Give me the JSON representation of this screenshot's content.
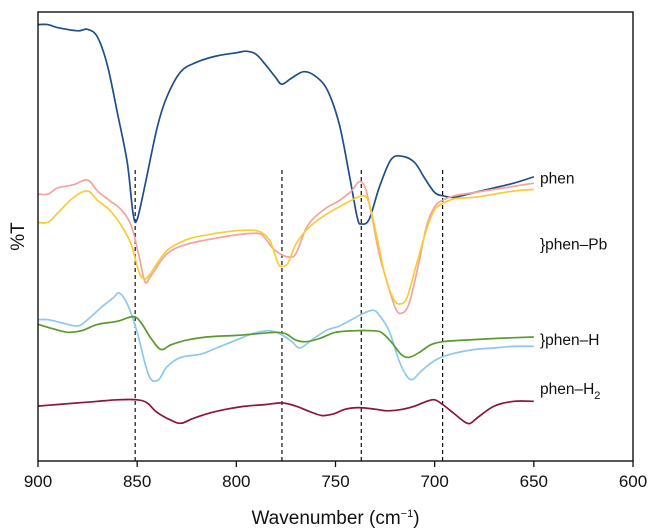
{
  "chart_data": {
    "type": "line",
    "title": "",
    "xlabel": {
      "prefix": "Wavenumber (cm",
      "sup": "−1",
      "suffix": ")"
    },
    "ylabel": "%T",
    "xlim": [
      900,
      600
    ],
    "x_reversed": true,
    "x_ticks": [
      900,
      850,
      800,
      750,
      700,
      650,
      600
    ],
    "y_ticks": [],
    "y_unit": "arbitrary offset transmittance",
    "grid": false,
    "legend": "none (labels at right end of curves)",
    "reference_lines": [
      851,
      777,
      737,
      696
    ],
    "labels": [
      {
        "id": "phen",
        "text": "phen",
        "y": 0.27
      },
      {
        "id": "phen-pb",
        "text": "}phen–Pb",
        "y": 0.06
      },
      {
        "id": "phen-h",
        "text": "}phen–H",
        "y": -0.245
      },
      {
        "id": "phen-h2",
        "text": "phen–H",
        "sub": "2",
        "y": -0.4
      }
    ],
    "series": [
      {
        "color": "#1f4e8c",
        "points": [
          [
            900,
            0.76
          ],
          [
            895,
            0.76
          ],
          [
            890,
            0.75
          ],
          [
            880,
            0.74
          ],
          [
            875,
            0.745
          ],
          [
            870,
            0.72
          ],
          [
            865,
            0.63
          ],
          [
            860,
            0.48
          ],
          [
            855,
            0.32
          ],
          [
            852,
            0.155
          ],
          [
            850,
            0.14
          ],
          [
            846,
            0.25
          ],
          [
            840,
            0.43
          ],
          [
            835,
            0.53
          ],
          [
            828,
            0.61
          ],
          [
            820,
            0.64
          ],
          [
            810,
            0.66
          ],
          [
            800,
            0.67
          ],
          [
            795,
            0.675
          ],
          [
            790,
            0.665
          ],
          [
            785,
            0.63
          ],
          [
            780,
            0.59
          ],
          [
            777,
            0.57
          ],
          [
            772,
            0.59
          ],
          [
            766,
            0.61
          ],
          [
            760,
            0.595
          ],
          [
            754,
            0.55
          ],
          [
            748,
            0.44
          ],
          [
            743,
            0.28
          ],
          [
            739,
            0.145
          ],
          [
            737,
            0.125
          ],
          [
            733,
            0.14
          ],
          [
            728,
            0.24
          ],
          [
            722,
            0.33
          ],
          [
            716,
            0.34
          ],
          [
            710,
            0.32
          ],
          [
            705,
            0.27
          ],
          [
            700,
            0.225
          ],
          [
            696,
            0.215
          ],
          [
            690,
            0.21
          ],
          [
            680,
            0.225
          ],
          [
            670,
            0.24
          ],
          [
            660,
            0.255
          ],
          [
            650,
            0.275
          ]
        ]
      },
      {
        "color": "#f4a3a0",
        "points": [
          [
            900,
            0.22
          ],
          [
            895,
            0.22
          ],
          [
            890,
            0.24
          ],
          [
            882,
            0.25
          ],
          [
            875,
            0.265
          ],
          [
            870,
            0.23
          ],
          [
            864,
            0.2
          ],
          [
            858,
            0.17
          ],
          [
            853,
            0.12
          ],
          [
            849,
            0.02
          ],
          [
            846,
            -0.06
          ],
          [
            843,
            -0.04
          ],
          [
            835,
            0.03
          ],
          [
            825,
            0.06
          ],
          [
            810,
            0.08
          ],
          [
            800,
            0.09
          ],
          [
            792,
            0.095
          ],
          [
            787,
            0.09
          ],
          [
            782,
            0.05
          ],
          [
            778,
            0.03
          ],
          [
            774,
            0.02
          ],
          [
            770,
            0.03
          ],
          [
            764,
            0.12
          ],
          [
            756,
            0.17
          ],
          [
            748,
            0.2
          ],
          [
            742,
            0.23
          ],
          [
            738,
            0.26
          ],
          [
            735,
            0.24
          ],
          [
            732,
            0.16
          ],
          [
            728,
            0.03
          ],
          [
            724,
            -0.06
          ],
          [
            720,
            -0.14
          ],
          [
            717,
            -0.16
          ],
          [
            713,
            -0.13
          ],
          [
            708,
            0.0
          ],
          [
            704,
            0.12
          ],
          [
            700,
            0.18
          ],
          [
            696,
            0.2
          ],
          [
            690,
            0.215
          ],
          [
            680,
            0.225
          ],
          [
            670,
            0.235
          ],
          [
            660,
            0.245
          ],
          [
            650,
            0.255
          ]
        ]
      },
      {
        "color": "#f7cd33",
        "points": [
          [
            900,
            0.13
          ],
          [
            895,
            0.13
          ],
          [
            890,
            0.16
          ],
          [
            882,
            0.21
          ],
          [
            875,
            0.23
          ],
          [
            870,
            0.2
          ],
          [
            864,
            0.17
          ],
          [
            858,
            0.12
          ],
          [
            853,
            0.06
          ],
          [
            849,
            -0.03
          ],
          [
            846,
            -0.05
          ],
          [
            843,
            -0.03
          ],
          [
            835,
            0.04
          ],
          [
            825,
            0.075
          ],
          [
            815,
            0.09
          ],
          [
            805,
            0.1
          ],
          [
            795,
            0.105
          ],
          [
            788,
            0.1
          ],
          [
            783,
            0.07
          ],
          [
            779,
            0.0
          ],
          [
            777,
            -0.01
          ],
          [
            774,
            0.0
          ],
          [
            770,
            0.06
          ],
          [
            764,
            0.11
          ],
          [
            756,
            0.15
          ],
          [
            748,
            0.18
          ],
          [
            742,
            0.2
          ],
          [
            736,
            0.215
          ],
          [
            733,
            0.19
          ],
          [
            729,
            0.08
          ],
          [
            725,
            -0.04
          ],
          [
            721,
            -0.11
          ],
          [
            718,
            -0.13
          ],
          [
            714,
            -0.11
          ],
          [
            709,
            0.0
          ],
          [
            704,
            0.11
          ],
          [
            700,
            0.17
          ],
          [
            696,
            0.19
          ],
          [
            690,
            0.205
          ],
          [
            680,
            0.21
          ],
          [
            670,
            0.22
          ],
          [
            660,
            0.23
          ],
          [
            650,
            0.235
          ]
        ]
      },
      {
        "color": "#8cc8f0",
        "points": [
          [
            900,
            -0.18
          ],
          [
            895,
            -0.18
          ],
          [
            888,
            -0.19
          ],
          [
            880,
            -0.2
          ],
          [
            875,
            -0.18
          ],
          [
            868,
            -0.14
          ],
          [
            862,
            -0.11
          ],
          [
            859,
            -0.095
          ],
          [
            855,
            -0.13
          ],
          [
            850,
            -0.22
          ],
          [
            846,
            -0.32
          ],
          [
            843,
            -0.37
          ],
          [
            839,
            -0.37
          ],
          [
            835,
            -0.33
          ],
          [
            828,
            -0.3
          ],
          [
            818,
            -0.29
          ],
          [
            810,
            -0.27
          ],
          [
            800,
            -0.245
          ],
          [
            792,
            -0.225
          ],
          [
            784,
            -0.215
          ],
          [
            778,
            -0.225
          ],
          [
            772,
            -0.25
          ],
          [
            768,
            -0.27
          ],
          [
            762,
            -0.245
          ],
          [
            755,
            -0.215
          ],
          [
            748,
            -0.2
          ],
          [
            742,
            -0.18
          ],
          [
            736,
            -0.16
          ],
          [
            731,
            -0.15
          ],
          [
            728,
            -0.165
          ],
          [
            723,
            -0.215
          ],
          [
            718,
            -0.31
          ],
          [
            714,
            -0.36
          ],
          [
            711,
            -0.37
          ],
          [
            707,
            -0.345
          ],
          [
            700,
            -0.31
          ],
          [
            692,
            -0.29
          ],
          [
            680,
            -0.275
          ],
          [
            670,
            -0.27
          ],
          [
            660,
            -0.265
          ],
          [
            650,
            -0.265
          ]
        ]
      },
      {
        "color": "#5a9a2e",
        "points": [
          [
            900,
            -0.195
          ],
          [
            892,
            -0.21
          ],
          [
            885,
            -0.22
          ],
          [
            878,
            -0.215
          ],
          [
            870,
            -0.195
          ],
          [
            860,
            -0.185
          ],
          [
            852,
            -0.17
          ],
          [
            848,
            -0.19
          ],
          [
            843,
            -0.24
          ],
          [
            838,
            -0.275
          ],
          [
            833,
            -0.26
          ],
          [
            825,
            -0.245
          ],
          [
            815,
            -0.235
          ],
          [
            800,
            -0.23
          ],
          [
            790,
            -0.225
          ],
          [
            780,
            -0.22
          ],
          [
            775,
            -0.225
          ],
          [
            770,
            -0.245
          ],
          [
            765,
            -0.25
          ],
          [
            758,
            -0.24
          ],
          [
            750,
            -0.22
          ],
          [
            740,
            -0.215
          ],
          [
            732,
            -0.215
          ],
          [
            727,
            -0.22
          ],
          [
            722,
            -0.25
          ],
          [
            717,
            -0.29
          ],
          [
            713,
            -0.3
          ],
          [
            708,
            -0.285
          ],
          [
            702,
            -0.26
          ],
          [
            696,
            -0.25
          ],
          [
            685,
            -0.245
          ],
          [
            670,
            -0.24
          ],
          [
            650,
            -0.235
          ]
        ]
      },
      {
        "color": "#8b1538",
        "points": [
          [
            900,
            -0.455
          ],
          [
            890,
            -0.45
          ],
          [
            880,
            -0.445
          ],
          [
            870,
            -0.44
          ],
          [
            860,
            -0.435
          ],
          [
            850,
            -0.435
          ],
          [
            845,
            -0.445
          ],
          [
            840,
            -0.475
          ],
          [
            833,
            -0.5
          ],
          [
            828,
            -0.51
          ],
          [
            822,
            -0.495
          ],
          [
            815,
            -0.48
          ],
          [
            805,
            -0.465
          ],
          [
            795,
            -0.455
          ],
          [
            785,
            -0.45
          ],
          [
            777,
            -0.445
          ],
          [
            770,
            -0.455
          ],
          [
            764,
            -0.47
          ],
          [
            757,
            -0.485
          ],
          [
            751,
            -0.48
          ],
          [
            745,
            -0.465
          ],
          [
            738,
            -0.46
          ],
          [
            730,
            -0.465
          ],
          [
            724,
            -0.47
          ],
          [
            716,
            -0.465
          ],
          [
            710,
            -0.455
          ],
          [
            704,
            -0.44
          ],
          [
            700,
            -0.435
          ],
          [
            696,
            -0.45
          ],
          [
            690,
            -0.48
          ],
          [
            685,
            -0.505
          ],
          [
            682,
            -0.51
          ],
          [
            678,
            -0.49
          ],
          [
            670,
            -0.455
          ],
          [
            660,
            -0.44
          ],
          [
            650,
            -0.44
          ]
        ]
      }
    ]
  }
}
